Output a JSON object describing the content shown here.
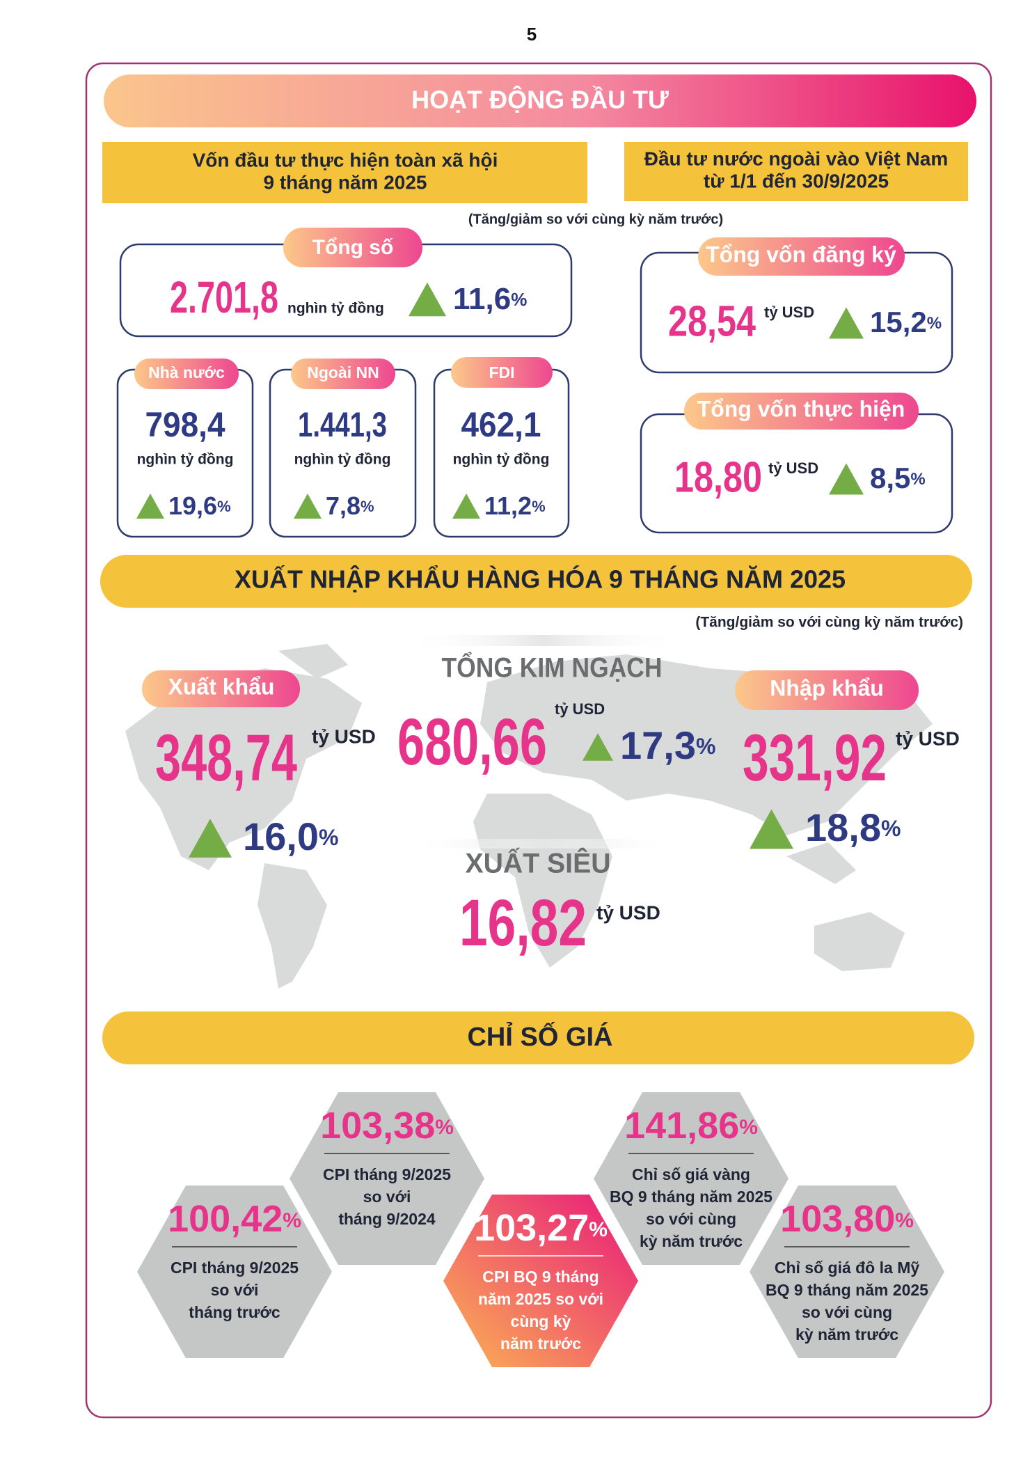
{
  "page_number": "5",
  "investment": {
    "title": "HOẠT ĐỘNG ĐẦU TƯ",
    "social_capital_heading": [
      "Vốn đầu tư thực hiện toàn xã hội",
      "9 tháng năm 2025"
    ],
    "foreign_heading": [
      "Đầu tư nước ngoài vào Việt Nam",
      "từ 1/1 đến 30/9/2025"
    ],
    "note": "(Tăng/giảm so với cùng kỳ năm trước)",
    "total": {
      "label": "Tổng số",
      "value": "2.701,8",
      "unit": "nghìn tỷ đồng",
      "change": "11,6",
      "change_unit": "%"
    },
    "sectors": [
      {
        "label": "Nhà nước",
        "value": "798,4",
        "unit": "nghìn tỷ đồng",
        "change": "19,6",
        "change_unit": "%"
      },
      {
        "label": "Ngoài NN",
        "value": "1.441,3",
        "unit": "nghìn tỷ đồng",
        "change": "7,8",
        "change_unit": "%"
      },
      {
        "label": "FDI",
        "value": "462,1",
        "unit": "nghìn tỷ đồng",
        "change": "11,2",
        "change_unit": "%"
      }
    ],
    "foreign": [
      {
        "label": "Tổng vốn đăng ký",
        "value": "28,54",
        "unit": "tỷ USD",
        "change": "15,2",
        "change_unit": "%"
      },
      {
        "label": "Tổng vốn thực hiện",
        "value": "18,80",
        "unit": "tỷ USD",
        "change": "8,5",
        "change_unit": "%"
      }
    ]
  },
  "trade": {
    "title": "XUẤT NHẬP KHẨU HÀNG HÓA 9 THÁNG NĂM 2025",
    "note": "(Tăng/giảm so với cùng kỳ năm trước)",
    "total": {
      "label": "TỔNG KIM NGẠCH",
      "value": "680,66",
      "unit": "tỷ USD",
      "change": "17,3",
      "change_unit": "%"
    },
    "export": {
      "label": "Xuất khẩu",
      "value": "348,74",
      "unit": "tỷ USD",
      "change": "16,0",
      "change_unit": "%"
    },
    "import": {
      "label": "Nhập khẩu",
      "value": "331,92",
      "unit": "tỷ USD",
      "change": "18,8",
      "change_unit": "%"
    },
    "surplus": {
      "label": "XUẤT SIÊU",
      "value": "16,82",
      "unit": "tỷ USD"
    }
  },
  "prices": {
    "title": "CHỈ SỐ GIÁ",
    "items": [
      {
        "value": "100,42",
        "unit": "%",
        "description": [
          "CPI tháng 9/2025",
          "so với",
          "tháng trước"
        ]
      },
      {
        "value": "103,38",
        "unit": "%",
        "description": [
          "CPI tháng 9/2025",
          "so với",
          "tháng 9/2024"
        ]
      },
      {
        "value": "103,27",
        "unit": "%",
        "description": [
          "CPI BQ 9 tháng",
          "năm 2025 so với",
          "cùng kỳ",
          "năm trước"
        ]
      },
      {
        "value": "141,86",
        "unit": "%",
        "description": [
          "Chỉ số giá vàng",
          "BQ 9 tháng năm 2025",
          "so với cùng",
          "kỳ năm trước"
        ]
      },
      {
        "value": "103,80",
        "unit": "%",
        "description": [
          "Chỉ số giá đô la Mỹ",
          "BQ 9 tháng năm 2025",
          "so với cùng",
          "kỳ năm trước"
        ]
      }
    ]
  }
}
